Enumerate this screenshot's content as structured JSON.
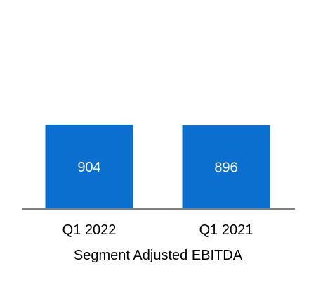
{
  "chart_data": {
    "type": "bar",
    "categories": [
      "Q1 2022",
      "Q1 2021"
    ],
    "values": [
      904,
      896
    ],
    "data_labels": [
      "904",
      "896"
    ],
    "xlabel": "Segment Adjusted EBITDA",
    "ylabel": "",
    "ylim": [
      0,
      1800
    ],
    "grid": false,
    "legend": "none",
    "colors": {
      "bar": "#0a6fcf",
      "axis": "#7f7f7f",
      "label_inside": "#ffffff",
      "text": "#000000"
    }
  }
}
